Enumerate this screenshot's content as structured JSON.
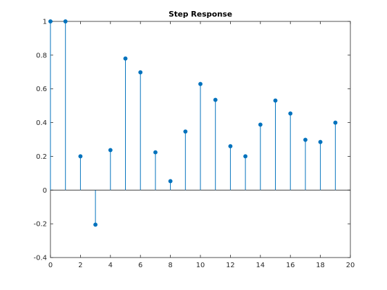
{
  "chart_data": {
    "type": "stem",
    "title": "Step Response",
    "xlabel": "",
    "ylabel": "",
    "xlim": [
      0,
      20
    ],
    "ylim": [
      -0.4,
      1.0
    ],
    "xticks": [
      0,
      2,
      4,
      6,
      8,
      10,
      12,
      14,
      16,
      18,
      20
    ],
    "yticks": [
      -0.4,
      -0.2,
      0,
      0.2,
      0.4,
      0.6,
      0.8,
      1
    ],
    "ytick_labels": [
      "-0.4",
      "-0.2",
      "0",
      "0.2",
      "0.4",
      "0.6",
      "0.8",
      "1"
    ],
    "grid": false,
    "colors": {
      "stem": "#0072BD",
      "axes": "#262626",
      "baseline": "#000000"
    },
    "x": [
      0,
      1,
      2,
      3,
      4,
      5,
      6,
      7,
      8,
      9,
      10,
      11,
      12,
      13,
      14,
      15,
      16,
      17,
      18,
      19
    ],
    "values": [
      1.0,
      1.0,
      0.2,
      -0.205,
      0.237,
      0.78,
      0.698,
      0.224,
      0.053,
      0.347,
      0.629,
      0.535,
      0.26,
      0.2,
      0.388,
      0.531,
      0.454,
      0.298,
      0.285,
      0.4
    ]
  }
}
